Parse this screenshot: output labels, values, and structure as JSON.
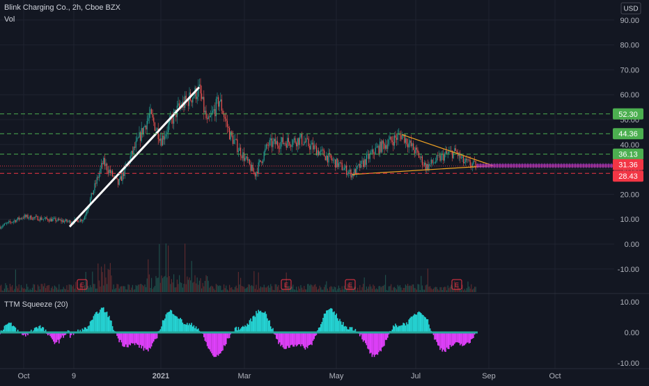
{
  "header": {
    "title": "Blink Charging Co., 2h, Cboe BZX",
    "volume_label": "Vol",
    "currency": "USD"
  },
  "indicator": {
    "label": "TTM Squeeze (20)",
    "ticks": [
      "10.00",
      "0.00",
      "-10.00"
    ]
  },
  "colors": {
    "background": "#131722",
    "up": "#26a69a",
    "down": "#ef5350",
    "trend_line": "#ffffff",
    "triangle": "#f5a623",
    "projection": "#9c27b0",
    "squeeze_pos": "#25d4d4",
    "squeeze_neg": "#e040fb",
    "squeeze_dots": "#26a69a",
    "level_green": "#4caf50",
    "level_red": "#f23645"
  },
  "chart_data": {
    "type": "candlestick",
    "title": "Blink Charging Co., 2h, Cboe BZX",
    "xlabel": "",
    "ylabel": "USD",
    "ylim": [
      -15,
      95
    ],
    "grid": true,
    "x_ticks": [
      "Oct",
      "9",
      "2021",
      "Mar",
      "May",
      "Jul",
      "Sep",
      "Oct"
    ],
    "y_ticks": [
      "90.00",
      "80.00",
      "70.00",
      "60.00",
      "50.00",
      "40.00",
      "30.00",
      "20.00",
      "10.00",
      "0.00",
      "-10.00"
    ],
    "horizontal_levels": [
      {
        "value": 52.3,
        "label": "52.30",
        "color": "green"
      },
      {
        "value": 44.36,
        "label": "44.36",
        "color": "green"
      },
      {
        "value": 36.13,
        "label": "36.13",
        "color": "green"
      },
      {
        "value": 28.43,
        "label": "28.43",
        "color": "red"
      }
    ],
    "last_price": {
      "value": 31.36,
      "label": "31.36"
    },
    "earnings_markers": [
      "E",
      "E",
      "E",
      "E"
    ],
    "price_path": [
      {
        "x": "Sep 2020",
        "y": 7
      },
      {
        "x": "Oct 2020",
        "y": 11
      },
      {
        "x": "early Nov 2020",
        "y": 9
      },
      {
        "x": "mid Nov 2020",
        "y": 10
      },
      {
        "x": "late Nov 2020",
        "y": 33
      },
      {
        "x": "early Dec 2020",
        "y": 24
      },
      {
        "x": "late Dec 2020",
        "y": 52
      },
      {
        "x": "early Jan 2021",
        "y": 42
      },
      {
        "x": "mid Jan 2021",
        "y": 54
      },
      {
        "x": "late Jan 2021",
        "y": 62
      },
      {
        "x": "early Feb 2021",
        "y": 48
      },
      {
        "x": "mid Feb 2021",
        "y": 58
      },
      {
        "x": "late Feb 2021",
        "y": 44
      },
      {
        "x": "early Mar 2021",
        "y": 28
      },
      {
        "x": "mid Mar 2021",
        "y": 40
      },
      {
        "x": "Apr 2021",
        "y": 42
      },
      {
        "x": "late Apr 2021",
        "y": 35
      },
      {
        "x": "mid May 2021",
        "y": 28
      },
      {
        "x": "early Jun 2021",
        "y": 38
      },
      {
        "x": "late Jun 2021",
        "y": 44
      },
      {
        "x": "early Jul 2021",
        "y": 36
      },
      {
        "x": "mid Jul 2021",
        "y": 31
      },
      {
        "x": "late Jul 2021",
        "y": 36
      },
      {
        "x": "early Aug 2021",
        "y": 37
      },
      {
        "x": "mid Aug 2021",
        "y": 33
      },
      {
        "x": "late Aug 2021",
        "y": 31.36
      }
    ],
    "trend_line": {
      "from": {
        "x": "early Nov 2020",
        "y": 7
      },
      "to": {
        "x": "late Jan 2021",
        "y": 63
      }
    },
    "triangle": {
      "upper": {
        "from": {
          "x": "late Jun 2021",
          "y": 44
        },
        "to": {
          "x": "early Sep 2021",
          "y": 31.5
        }
      },
      "lower": {
        "from": {
          "x": "mid May 2021",
          "y": 28
        },
        "to": {
          "x": "early Sep 2021",
          "y": 31.5
        }
      }
    },
    "squeeze_ylim": [
      -12,
      12
    ],
    "squeeze_ticks": [
      10,
      0,
      -10
    ]
  }
}
